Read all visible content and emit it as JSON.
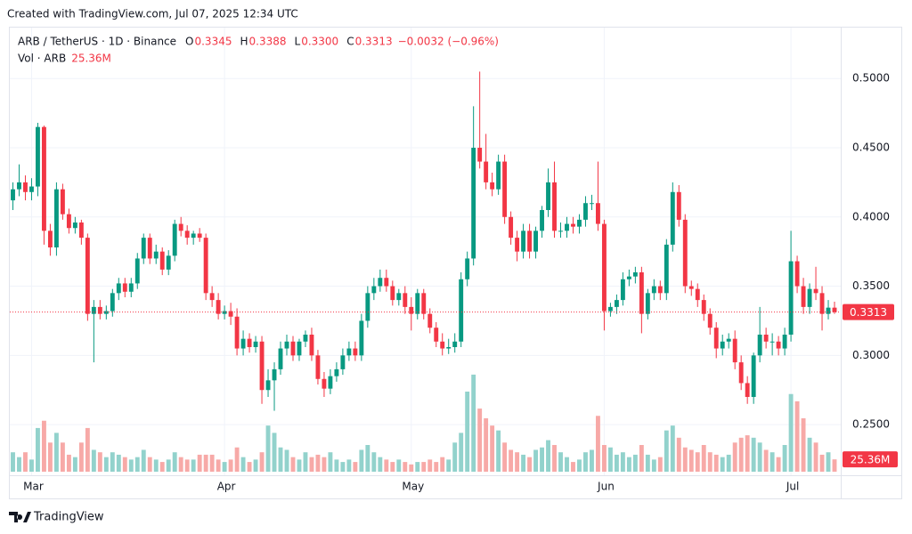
{
  "header": {
    "created": "Created with TradingView.com, Jul 07, 2025 12:34 UTC",
    "brand": "TradingView"
  },
  "chart_data": {
    "type": "candlestick",
    "legend": {
      "symbol": "ARB / TetherUS · 1D · Binance",
      "fields": [
        {
          "key": "O",
          "value": "0.3345"
        },
        {
          "key": "H",
          "value": "0.3388"
        },
        {
          "key": "L",
          "value": "0.3300"
        },
        {
          "key": "C",
          "value": "0.3313"
        }
      ],
      "change": "−0.0032 (−0.96%)",
      "volume_name": "Vol · ARB",
      "volume": "25.36M"
    },
    "up_color": "#089981",
    "down_color": "#f23645",
    "volume_up_color": "#92d2cc",
    "volume_down_color": "#f7a9a7",
    "ylim": [
      0.216,
      0.531
    ],
    "yticks": [
      {
        "value": 0.5,
        "label": "0.5000"
      },
      {
        "value": 0.45,
        "label": "0.4500"
      },
      {
        "value": 0.4,
        "label": "0.4000"
      },
      {
        "value": 0.35,
        "label": "0.3500"
      },
      {
        "value": 0.3,
        "label": "0.3000"
      },
      {
        "value": 0.25,
        "label": "0.2500"
      }
    ],
    "xlim": [
      -0.5,
      133
    ],
    "xticks": [
      {
        "value": 3,
        "label": "Mar"
      },
      {
        "value": 34,
        "label": "Apr"
      },
      {
        "value": 64,
        "label": "May"
      },
      {
        "value": 95,
        "label": "Jun"
      },
      {
        "value": 125,
        "label": "Jul"
      }
    ],
    "volume_ylim": [
      0,
      220
    ],
    "grid": true,
    "open": [
      0.412,
      0.42,
      0.425,
      0.418,
      0.422,
      0.465,
      0.39,
      0.378,
      0.42,
      0.402,
      0.392,
      0.396,
      0.385,
      0.33,
      0.335,
      0.33,
      0.332,
      0.345,
      0.352,
      0.346,
      0.352,
      0.37,
      0.385,
      0.37,
      0.375,
      0.362,
      0.372,
      0.395,
      0.39,
      0.385,
      0.388,
      0.385,
      0.345,
      0.34,
      0.33,
      0.332,
      0.328,
      0.305,
      0.312,
      0.306,
      0.31,
      0.275,
      0.282,
      0.29,
      0.305,
      0.31,
      0.3,
      0.31,
      0.315,
      0.3,
      0.283,
      0.276,
      0.285,
      0.29,
      0.3,
      0.305,
      0.3,
      0.325,
      0.345,
      0.35,
      0.356,
      0.35,
      0.34,
      0.345,
      0.335,
      0.33,
      0.345,
      0.33,
      0.32,
      0.31,
      0.305,
      0.306,
      0.31,
      0.355,
      0.37,
      0.45,
      0.44,
      0.425,
      0.42,
      0.44,
      0.4,
      0.385,
      0.375,
      0.39,
      0.375,
      0.39,
      0.405,
      0.425,
      0.39,
      0.39,
      0.395,
      0.393,
      0.398,
      0.41,
      0.41,
      0.395,
      0.332,
      0.335,
      0.34,
      0.355,
      0.357,
      0.36,
      0.33,
      0.345,
      0.35,
      0.345,
      0.38,
      0.418,
      0.398,
      0.35,
      0.348,
      0.34,
      0.33,
      0.32,
      0.305,
      0.31,
      0.312,
      0.295,
      0.28,
      0.27,
      0.3,
      0.315,
      0.31,
      0.31,
      0.305,
      0.315,
      0.368,
      0.35,
      0.335,
      0.348,
      0.345,
      0.33,
      0.3345
    ],
    "high": [
      0.425,
      0.438,
      0.43,
      0.428,
      0.468,
      0.466,
      0.395,
      0.425,
      0.424,
      0.406,
      0.4,
      0.398,
      0.388,
      0.34,
      0.34,
      0.336,
      0.348,
      0.356,
      0.356,
      0.356,
      0.374,
      0.388,
      0.388,
      0.38,
      0.378,
      0.376,
      0.398,
      0.4,
      0.394,
      0.39,
      0.392,
      0.388,
      0.35,
      0.345,
      0.336,
      0.338,
      0.334,
      0.318,
      0.316,
      0.314,
      0.314,
      0.29,
      0.295,
      0.31,
      0.315,
      0.314,
      0.312,
      0.318,
      0.32,
      0.304,
      0.288,
      0.29,
      0.295,
      0.305,
      0.31,
      0.31,
      0.33,
      0.35,
      0.356,
      0.362,
      0.362,
      0.354,
      0.348,
      0.35,
      0.342,
      0.348,
      0.348,
      0.334,
      0.324,
      0.316,
      0.312,
      0.316,
      0.36,
      0.375,
      0.48,
      0.505,
      0.46,
      0.432,
      0.445,
      0.445,
      0.404,
      0.39,
      0.395,
      0.395,
      0.393,
      0.408,
      0.435,
      0.44,
      0.396,
      0.4,
      0.4,
      0.402,
      0.415,
      0.416,
      0.44,
      0.398,
      0.338,
      0.344,
      0.36,
      0.362,
      0.364,
      0.364,
      0.348,
      0.355,
      0.354,
      0.384,
      0.425,
      0.423,
      0.402,
      0.354,
      0.352,
      0.344,
      0.334,
      0.324,
      0.315,
      0.316,
      0.318,
      0.3,
      0.285,
      0.302,
      0.335,
      0.32,
      0.316,
      0.314,
      0.32,
      0.39,
      0.372,
      0.356,
      0.352,
      0.364,
      0.35,
      0.34,
      0.3388
    ],
    "low": [
      0.405,
      0.415,
      0.412,
      0.412,
      0.415,
      0.38,
      0.372,
      0.372,
      0.398,
      0.388,
      0.388,
      0.38,
      0.325,
      0.295,
      0.326,
      0.326,
      0.328,
      0.34,
      0.342,
      0.342,
      0.348,
      0.366,
      0.366,
      0.366,
      0.358,
      0.358,
      0.368,
      0.386,
      0.38,
      0.38,
      0.382,
      0.34,
      0.335,
      0.326,
      0.326,
      0.322,
      0.3,
      0.3,
      0.302,
      0.302,
      0.265,
      0.27,
      0.26,
      0.286,
      0.3,
      0.296,
      0.296,
      0.306,
      0.296,
      0.279,
      0.27,
      0.272,
      0.281,
      0.286,
      0.296,
      0.296,
      0.296,
      0.32,
      0.34,
      0.346,
      0.346,
      0.336,
      0.336,
      0.33,
      0.318,
      0.326,
      0.326,
      0.316,
      0.306,
      0.3,
      0.301,
      0.302,
      0.306,
      0.35,
      0.365,
      0.435,
      0.42,
      0.415,
      0.416,
      0.395,
      0.38,
      0.368,
      0.37,
      0.37,
      0.37,
      0.385,
      0.4,
      0.385,
      0.385,
      0.385,
      0.388,
      0.388,
      0.393,
      0.405,
      0.39,
      0.318,
      0.328,
      0.33,
      0.336,
      0.35,
      0.352,
      0.316,
      0.326,
      0.34,
      0.34,
      0.34,
      0.375,
      0.393,
      0.345,
      0.343,
      0.335,
      0.325,
      0.315,
      0.298,
      0.3,
      0.305,
      0.29,
      0.275,
      0.265,
      0.265,
      0.295,
      0.305,
      0.3,
      0.3,
      0.3,
      0.31,
      0.345,
      0.33,
      0.33,
      0.34,
      0.318,
      0.326,
      0.33
    ],
    "close": [
      0.42,
      0.425,
      0.418,
      0.422,
      0.465,
      0.39,
      0.378,
      0.42,
      0.402,
      0.392,
      0.396,
      0.385,
      0.33,
      0.335,
      0.33,
      0.332,
      0.345,
      0.352,
      0.346,
      0.352,
      0.37,
      0.385,
      0.37,
      0.375,
      0.362,
      0.372,
      0.395,
      0.39,
      0.385,
      0.388,
      0.385,
      0.345,
      0.34,
      0.33,
      0.332,
      0.328,
      0.305,
      0.312,
      0.306,
      0.31,
      0.275,
      0.282,
      0.29,
      0.305,
      0.31,
      0.3,
      0.31,
      0.315,
      0.3,
      0.283,
      0.276,
      0.285,
      0.29,
      0.3,
      0.305,
      0.3,
      0.325,
      0.345,
      0.35,
      0.356,
      0.35,
      0.34,
      0.345,
      0.335,
      0.33,
      0.345,
      0.33,
      0.32,
      0.31,
      0.305,
      0.306,
      0.31,
      0.355,
      0.37,
      0.45,
      0.44,
      0.425,
      0.42,
      0.44,
      0.4,
      0.385,
      0.375,
      0.39,
      0.375,
      0.39,
      0.405,
      0.425,
      0.39,
      0.39,
      0.395,
      0.393,
      0.398,
      0.41,
      0.41,
      0.395,
      0.332,
      0.335,
      0.34,
      0.355,
      0.357,
      0.36,
      0.33,
      0.345,
      0.35,
      0.345,
      0.38,
      0.418,
      0.398,
      0.35,
      0.348,
      0.34,
      0.33,
      0.32,
      0.305,
      0.31,
      0.312,
      0.295,
      0.28,
      0.27,
      0.3,
      0.315,
      0.31,
      0.31,
      0.305,
      0.315,
      0.368,
      0.35,
      0.335,
      0.348,
      0.345,
      0.33,
      0.3345,
      0.3313
    ],
    "volume": [
      40,
      30,
      40,
      25,
      90,
      105,
      60,
      80,
      60,
      35,
      30,
      60,
      90,
      45,
      40,
      30,
      40,
      35,
      30,
      25,
      30,
      45,
      30,
      25,
      20,
      25,
      40,
      30,
      25,
      25,
      35,
      35,
      35,
      25,
      20,
      25,
      50,
      30,
      20,
      25,
      40,
      95,
      80,
      50,
      45,
      30,
      25,
      40,
      30,
      35,
      30,
      40,
      25,
      20,
      25,
      20,
      45,
      55,
      40,
      30,
      25,
      20,
      25,
      20,
      15,
      20,
      20,
      25,
      20,
      30,
      25,
      60,
      80,
      165,
      200,
      130,
      110,
      95,
      85,
      60,
      45,
      40,
      35,
      30,
      45,
      50,
      65,
      55,
      40,
      30,
      20,
      25,
      40,
      45,
      115,
      55,
      50,
      35,
      40,
      30,
      35,
      55,
      35,
      25,
      30,
      85,
      95,
      70,
      50,
      45,
      40,
      55,
      40,
      35,
      30,
      35,
      60,
      70,
      75,
      70,
      60,
      45,
      40,
      30,
      55,
      160,
      145,
      110,
      70,
      60,
      35,
      40,
      25.36
    ]
  }
}
